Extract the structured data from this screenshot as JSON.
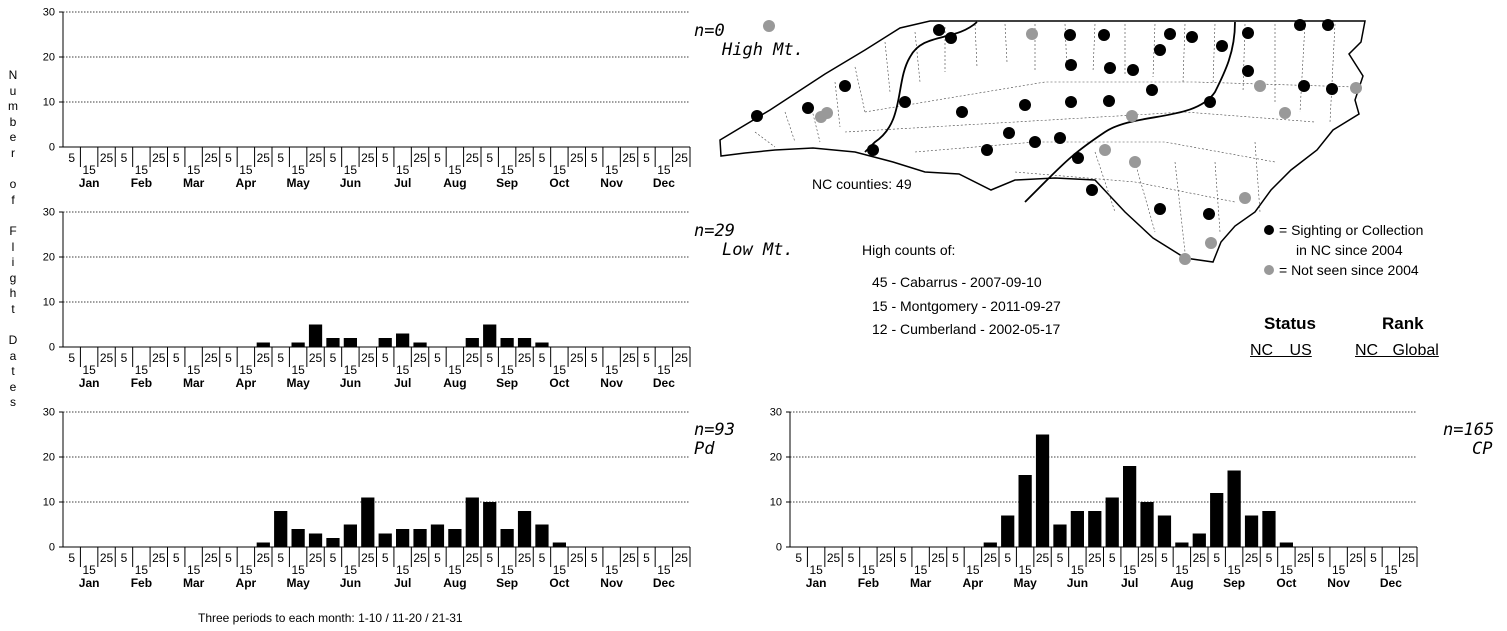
{
  "y_axis_title": "Number of Flight Dates",
  "x_caption": "Three periods to each month: 1-10 / 11-20 / 21-31",
  "period_day_ticks": [
    "5",
    "15",
    "25"
  ],
  "charts": [
    {
      "type": "bar",
      "region": "High Mt.",
      "n_label": "n=0",
      "ylim": [
        0,
        30
      ],
      "yticks": [
        0,
        10,
        20,
        30
      ],
      "months": [
        "Jan",
        "Feb",
        "Mar",
        "Apr",
        "May",
        "Jun",
        "Jul",
        "Aug",
        "Sep",
        "Oct",
        "Nov",
        "Dec"
      ],
      "values": [
        0,
        0,
        0,
        0,
        0,
        0,
        0,
        0,
        0,
        0,
        0,
        0,
        0,
        0,
        0,
        0,
        0,
        0,
        0,
        0,
        0,
        0,
        0,
        0,
        0,
        0,
        0,
        0,
        0,
        0,
        0,
        0,
        0,
        0,
        0,
        0
      ]
    },
    {
      "type": "bar",
      "region": "Low Mt.",
      "n_label": "n=29",
      "ylim": [
        0,
        30
      ],
      "yticks": [
        0,
        10,
        20,
        30
      ],
      "months": [
        "Jan",
        "Feb",
        "Mar",
        "Apr",
        "May",
        "Jun",
        "Jul",
        "Aug",
        "Sep",
        "Oct",
        "Nov",
        "Dec"
      ],
      "values": [
        0,
        0,
        0,
        0,
        0,
        0,
        0,
        0,
        0,
        0,
        0,
        1,
        0,
        1,
        5,
        2,
        2,
        0,
        2,
        3,
        1,
        0,
        0,
        2,
        5,
        2,
        2,
        1,
        0,
        0,
        0,
        0,
        0,
        0,
        0,
        0
      ]
    },
    {
      "type": "bar",
      "region": "Pd",
      "n_label": "n=93",
      "ylim": [
        0,
        30
      ],
      "yticks": [
        0,
        10,
        20,
        30
      ],
      "months": [
        "Jan",
        "Feb",
        "Mar",
        "Apr",
        "May",
        "Jun",
        "Jul",
        "Aug",
        "Sep",
        "Oct",
        "Nov",
        "Dec"
      ],
      "values": [
        0,
        0,
        0,
        0,
        0,
        0,
        0,
        0,
        0,
        0,
        0,
        1,
        8,
        4,
        3,
        2,
        5,
        11,
        3,
        4,
        4,
        5,
        4,
        11,
        10,
        4,
        8,
        5,
        1,
        0,
        0,
        0,
        0,
        0,
        0,
        0
      ]
    },
    {
      "type": "bar",
      "region": "CP",
      "n_label": "n=165",
      "ylim": [
        0,
        30
      ],
      "yticks": [
        0,
        10,
        20,
        30
      ],
      "months": [
        "Jan",
        "Feb",
        "Mar",
        "Apr",
        "May",
        "Jun",
        "Jul",
        "Aug",
        "Sep",
        "Oct",
        "Nov",
        "Dec"
      ],
      "values": [
        0,
        0,
        0,
        0,
        0,
        0,
        0,
        0,
        0,
        0,
        0,
        1,
        7,
        16,
        25,
        5,
        8,
        8,
        11,
        18,
        10,
        7,
        1,
        3,
        12,
        17,
        7,
        8,
        1,
        0,
        0,
        0,
        0,
        0,
        0,
        0
      ]
    }
  ],
  "map": {
    "counties_label": "NC counties: 49",
    "colors": {
      "seen": "#000000",
      "not_seen": "#999999",
      "outline": "#000000"
    }
  },
  "high_counts": {
    "title": "High counts of:",
    "items": [
      "45 - Cabarrus - 2007-09-10",
      "15 - Montgomery - 2011-09-27",
      "12 - Cumberland - 2002-05-17"
    ]
  },
  "legend": {
    "seen_line1": "= Sighting or Collection",
    "seen_line2": "in NC since 2004",
    "not_seen": "= Not seen since 2004"
  },
  "status_rank": {
    "status": "Status",
    "rank": "Rank",
    "status_cols": "NC US",
    "rank_cols": "NC Global"
  }
}
